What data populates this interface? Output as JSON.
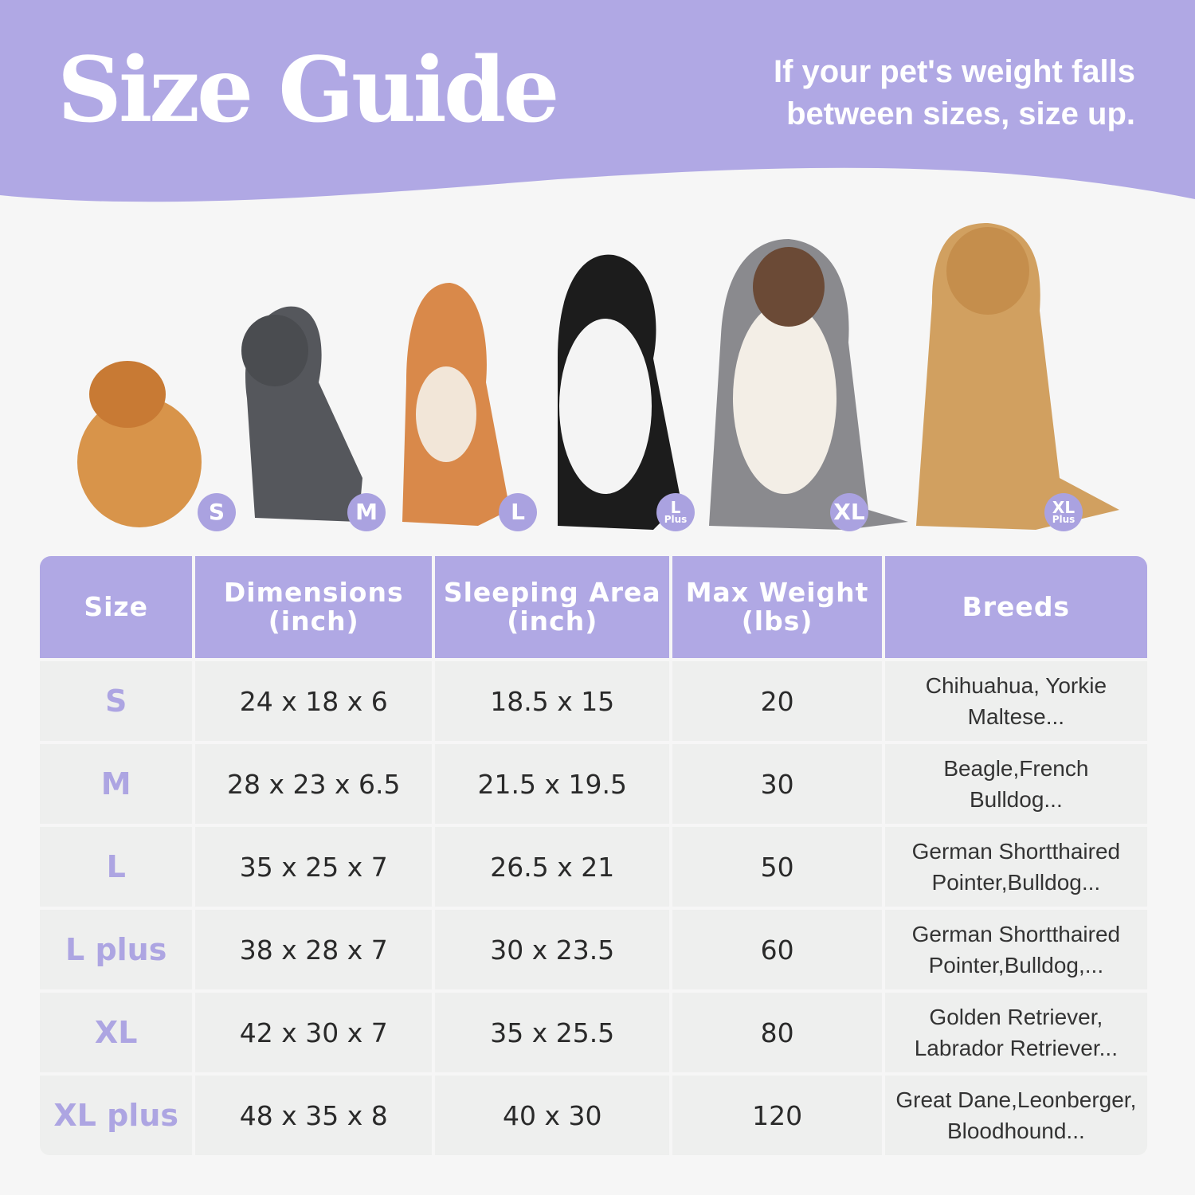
{
  "header": {
    "title": "Size Guide",
    "subtitle_line1": "If your pet's weight falls",
    "subtitle_line2": "between sizes, size up."
  },
  "colors": {
    "accent": "#b0a8e4",
    "cell": "#eeefee",
    "background": "#f6f6f6"
  },
  "dogs": [
    {
      "badge": "S",
      "badge_sub": ""
    },
    {
      "badge": "M",
      "badge_sub": ""
    },
    {
      "badge": "L",
      "badge_sub": ""
    },
    {
      "badge": "L",
      "badge_sub": "Plus"
    },
    {
      "badge": "XL",
      "badge_sub": ""
    },
    {
      "badge": "XL",
      "badge_sub": "Plus"
    }
  ],
  "table": {
    "headers": [
      {
        "line1": "Size",
        "line2": ""
      },
      {
        "line1": "Dimensions",
        "line2": "(inch)"
      },
      {
        "line1": "Sleeping Area",
        "line2": "(inch)"
      },
      {
        "line1": "Max Weight",
        "line2": "(lbs)"
      },
      {
        "line1": "Breeds",
        "line2": ""
      }
    ],
    "rows": [
      {
        "size": "S",
        "dimensions": "24 x 18 x 6",
        "sleeping": "18.5 x 15",
        "weight": "20",
        "breeds1": "Chihuahua, Yorkie",
        "breeds2": "Maltese..."
      },
      {
        "size": "M",
        "dimensions": "28 x 23 x 6.5",
        "sleeping": "21.5 x 19.5",
        "weight": "30",
        "breeds1": "Beagle,French",
        "breeds2": "Bulldog..."
      },
      {
        "size": "L",
        "dimensions": "35 x 25 x 7",
        "sleeping": "26.5 x 21",
        "weight": "50",
        "breeds1": "German Shortthaired",
        "breeds2": "Pointer,Bulldog..."
      },
      {
        "size": "L plus",
        "dimensions": "38 x 28 x 7",
        "sleeping": "30 x 23.5",
        "weight": "60",
        "breeds1": "German Shortthaired",
        "breeds2": "Pointer,Bulldog,..."
      },
      {
        "size": "XL",
        "dimensions": "42 x 30 x 7",
        "sleeping": "35 x 25.5",
        "weight": "80",
        "breeds1": "Golden Retriever,",
        "breeds2": "Labrador Retriever..."
      },
      {
        "size": "XL plus",
        "dimensions": "48 x 35 x 8",
        "sleeping": "40 x 30",
        "weight": "120",
        "breeds1": "Great Dane,Leonberger,",
        "breeds2": "Bloodhound..."
      }
    ]
  }
}
